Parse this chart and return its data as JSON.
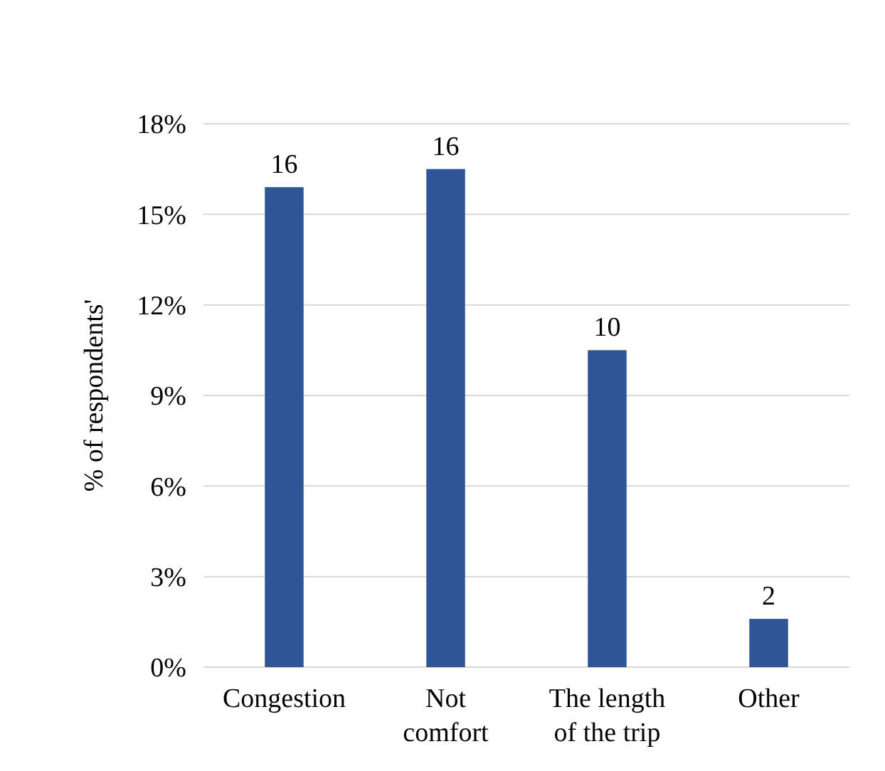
{
  "chart_data": {
    "type": "bar",
    "ylabel": "% of respondents'",
    "categories": [
      "Congestion",
      "Not comfort",
      "The length of the trip",
      "Other"
    ],
    "values": [
      15.9,
      16.5,
      10.5,
      1.6
    ],
    "color": "#2f5597",
    "value_labels": [
      "16",
      "16",
      "10",
      "2"
    ],
    "ylim": [
      0,
      18
    ],
    "yticks": [
      {
        "value": 0,
        "label": "0%"
      },
      {
        "value": 3,
        "label": "3%"
      },
      {
        "value": 6,
        "label": "6%"
      },
      {
        "value": 9,
        "label": "9%"
      },
      {
        "value": 12,
        "label": "12%"
      },
      {
        "value": 15,
        "label": "15%"
      },
      {
        "value": 18,
        "label": "18%"
      }
    ],
    "grid": "y"
  }
}
